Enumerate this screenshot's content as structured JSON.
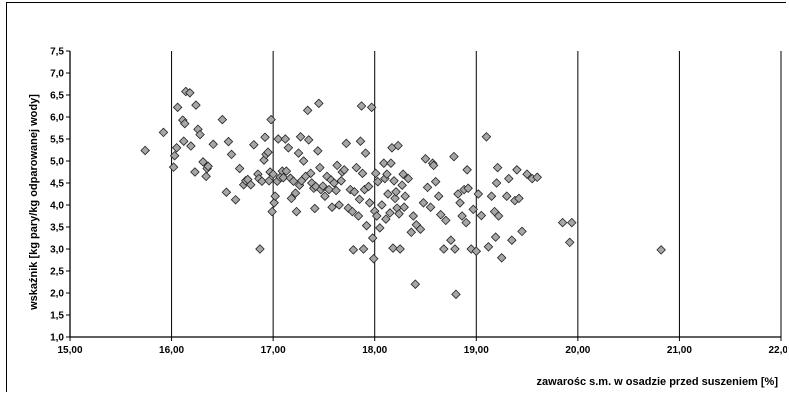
{
  "chart_data": {
    "type": "scatter",
    "title": "",
    "xlabel": "zawarośc s.m. w osadzie przed suszeniem [%]",
    "ylabel": "wskaźnik [kg pary/kg odparowanej wody]",
    "xlim": [
      15,
      22
    ],
    "ylim": [
      1,
      7.5
    ],
    "xticks": [
      "15,00",
      "16,00",
      "17,00",
      "18,00",
      "19,00",
      "20,00",
      "21,00",
      "22,00"
    ],
    "yticks": [
      "1,0",
      "1,5",
      "2,0",
      "2,5",
      "3,0",
      "3,5",
      "4,0",
      "4,5",
      "5,0",
      "5,5",
      "6,0",
      "6,5",
      "7,0",
      "7,5"
    ],
    "grid": "vertical",
    "marker": "diamond",
    "marker_color": "#a6a6a6",
    "series": [
      {
        "points": [
          [
            15.74,
            5.24
          ],
          [
            15.92,
            5.65
          ],
          [
            16.02,
            4.86
          ],
          [
            16.03,
            5.12
          ],
          [
            16.05,
            5.3
          ],
          [
            16.06,
            6.22
          ],
          [
            16.11,
            5.93
          ],
          [
            16.12,
            5.45
          ],
          [
            16.13,
            5.85
          ],
          [
            16.14,
            6.58
          ],
          [
            16.18,
            6.55
          ],
          [
            16.19,
            5.34
          ],
          [
            16.23,
            4.75
          ],
          [
            16.24,
            6.27
          ],
          [
            16.26,
            5.72
          ],
          [
            16.28,
            5.6
          ],
          [
            16.31,
            4.98
          ],
          [
            16.34,
            4.65
          ],
          [
            16.35,
            4.83
          ],
          [
            16.36,
            4.88
          ],
          [
            16.41,
            5.38
          ],
          [
            16.5,
            5.94
          ],
          [
            16.54,
            4.29
          ],
          [
            16.56,
            5.44
          ],
          [
            16.59,
            5.15
          ],
          [
            16.63,
            4.12
          ],
          [
            16.67,
            4.83
          ],
          [
            16.71,
            4.46
          ],
          [
            16.73,
            4.55
          ],
          [
            16.75,
            4.58
          ],
          [
            16.78,
            4.46
          ],
          [
            16.81,
            5.37
          ],
          [
            16.85,
            4.7
          ],
          [
            16.86,
            4.6
          ],
          [
            16.87,
            3.0
          ],
          [
            16.89,
            4.54
          ],
          [
            16.91,
            5.02
          ],
          [
            16.92,
            5.54
          ],
          [
            16.93,
            5.15
          ],
          [
            16.95,
            5.2
          ],
          [
            16.96,
            4.55
          ],
          [
            16.97,
            4.75
          ],
          [
            16.98,
            5.94
          ],
          [
            16.99,
            3.85
          ],
          [
            17.0,
            4.7
          ],
          [
            17.01,
            4.05
          ],
          [
            17.02,
            4.2
          ],
          [
            17.04,
            4.54
          ],
          [
            17.05,
            5.5
          ],
          [
            17.07,
            4.63
          ],
          [
            17.09,
            4.77
          ],
          [
            17.1,
            4.62
          ],
          [
            17.12,
            5.5
          ],
          [
            17.13,
            4.77
          ],
          [
            17.15,
            5.3
          ],
          [
            17.17,
            4.61
          ],
          [
            17.18,
            4.15
          ],
          [
            17.2,
            4.54
          ],
          [
            17.22,
            4.27
          ],
          [
            17.23,
            3.85
          ],
          [
            17.25,
            5.18
          ],
          [
            17.26,
            4.45
          ],
          [
            17.27,
            5.55
          ],
          [
            17.28,
            4.55
          ],
          [
            17.3,
            5.0
          ],
          [
            17.32,
            4.65
          ],
          [
            17.34,
            6.15
          ],
          [
            17.35,
            5.48
          ],
          [
            17.37,
            4.72
          ],
          [
            17.38,
            4.5
          ],
          [
            17.4,
            4.38
          ],
          [
            17.41,
            3.92
          ],
          [
            17.42,
            4.42
          ],
          [
            17.44,
            5.23
          ],
          [
            17.45,
            6.31
          ],
          [
            17.46,
            4.85
          ],
          [
            17.47,
            4.35
          ],
          [
            17.49,
            4.43
          ],
          [
            17.51,
            4.2
          ],
          [
            17.53,
            4.65
          ],
          [
            17.55,
            4.35
          ],
          [
            17.57,
            4.57
          ],
          [
            17.58,
            3.95
          ],
          [
            17.6,
            4.5
          ],
          [
            17.62,
            4.33
          ],
          [
            17.63,
            4.9
          ],
          [
            17.65,
            4.0
          ],
          [
            17.67,
            4.55
          ],
          [
            17.68,
            4.75
          ],
          [
            17.7,
            4.8
          ],
          [
            17.72,
            5.4
          ],
          [
            17.74,
            3.93
          ],
          [
            17.76,
            4.35
          ],
          [
            17.78,
            3.85
          ],
          [
            17.79,
            2.98
          ],
          [
            17.8,
            4.3
          ],
          [
            17.82,
            4.85
          ],
          [
            17.84,
            3.75
          ],
          [
            17.85,
            4.13
          ],
          [
            17.86,
            5.45
          ],
          [
            17.87,
            6.25
          ],
          [
            17.88,
            4.72
          ],
          [
            17.89,
            3.0
          ],
          [
            17.9,
            4.35
          ],
          [
            17.91,
            5.18
          ],
          [
            17.92,
            3.53
          ],
          [
            17.94,
            4.42
          ],
          [
            17.95,
            4.05
          ],
          [
            17.97,
            6.22
          ],
          [
            17.98,
            3.25
          ],
          [
            17.99,
            2.78
          ],
          [
            18.0,
            3.86
          ],
          [
            18.01,
            4.72
          ],
          [
            18.02,
            3.75
          ],
          [
            18.03,
            4.53
          ],
          [
            18.05,
            3.48
          ],
          [
            18.07,
            4.0
          ],
          [
            18.09,
            4.95
          ],
          [
            18.1,
            4.6
          ],
          [
            18.11,
            3.68
          ],
          [
            18.12,
            4.7
          ],
          [
            18.13,
            4.25
          ],
          [
            18.15,
            3.82
          ],
          [
            18.16,
            4.95
          ],
          [
            18.17,
            5.3
          ],
          [
            18.18,
            3.02
          ],
          [
            18.19,
            4.55
          ],
          [
            18.2,
            4.15
          ],
          [
            18.21,
            4.3
          ],
          [
            18.22,
            3.93
          ],
          [
            18.23,
            5.35
          ],
          [
            18.24,
            3.8
          ],
          [
            18.25,
            3.0
          ],
          [
            18.27,
            4.45
          ],
          [
            18.28,
            4.7
          ],
          [
            18.29,
            3.95
          ],
          [
            18.3,
            4.2
          ],
          [
            18.33,
            4.6
          ],
          [
            18.36,
            3.38
          ],
          [
            18.38,
            3.75
          ],
          [
            18.4,
            2.2
          ],
          [
            18.41,
            3.55
          ],
          [
            18.45,
            3.45
          ],
          [
            18.48,
            4.05
          ],
          [
            18.5,
            5.05
          ],
          [
            18.52,
            4.4
          ],
          [
            18.55,
            3.95
          ],
          [
            18.57,
            4.95
          ],
          [
            18.58,
            4.9
          ],
          [
            18.6,
            4.53
          ],
          [
            18.63,
            4.2
          ],
          [
            18.65,
            3.78
          ],
          [
            18.68,
            3.0
          ],
          [
            18.7,
            3.65
          ],
          [
            18.75,
            3.2
          ],
          [
            18.78,
            5.1
          ],
          [
            18.79,
            3.0
          ],
          [
            18.8,
            1.97
          ],
          [
            18.82,
            4.25
          ],
          [
            18.84,
            4.05
          ],
          [
            18.86,
            3.75
          ],
          [
            18.88,
            4.35
          ],
          [
            18.9,
            3.6
          ],
          [
            18.91,
            4.8
          ],
          [
            18.92,
            4.38
          ],
          [
            18.95,
            3.0
          ],
          [
            18.97,
            3.9
          ],
          [
            19.0,
            2.95
          ],
          [
            19.02,
            4.25
          ],
          [
            19.05,
            3.76
          ],
          [
            19.1,
            5.55
          ],
          [
            19.12,
            3.05
          ],
          [
            19.15,
            4.2
          ],
          [
            19.18,
            3.85
          ],
          [
            19.19,
            3.27
          ],
          [
            19.2,
            4.5
          ],
          [
            19.21,
            4.85
          ],
          [
            19.22,
            3.75
          ],
          [
            19.25,
            2.8
          ],
          [
            19.3,
            4.2
          ],
          [
            19.32,
            4.6
          ],
          [
            19.35,
            3.2
          ],
          [
            19.38,
            4.1
          ],
          [
            19.4,
            4.8
          ],
          [
            19.42,
            4.15
          ],
          [
            19.45,
            3.4
          ],
          [
            19.5,
            4.7
          ],
          [
            19.55,
            4.6
          ],
          [
            19.6,
            4.63
          ],
          [
            19.85,
            3.6
          ],
          [
            19.92,
            3.15
          ],
          [
            19.94,
            3.6
          ],
          [
            20.82,
            2.98
          ]
        ]
      }
    ]
  }
}
